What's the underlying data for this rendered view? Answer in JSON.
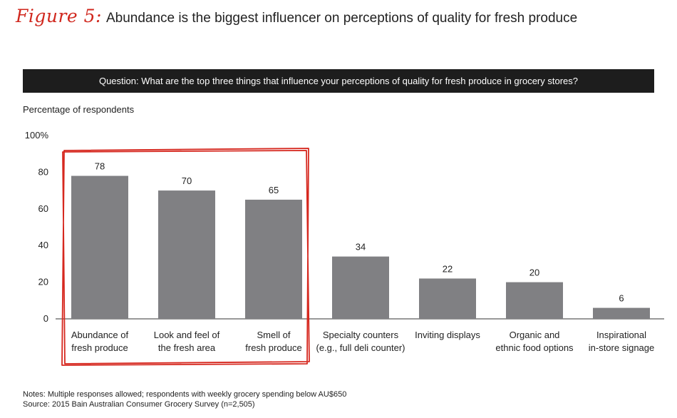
{
  "figure": {
    "label": "Figure 5:",
    "title": "Abundance is the biggest influencer on perceptions of quality for fresh produce"
  },
  "question": "Question: What are the top three things that influence your perceptions of quality for fresh produce in grocery stores?",
  "y_axis_caption": "Percentage of respondents",
  "notes": "Notes: Multiple responses allowed; respondents with weekly grocery spending below AU$650",
  "source": "Source: 2015 Bain Australian Consumer Grocery Survey (n=2,505)",
  "colors": {
    "bar": "#808083",
    "highlight": "#d6281f",
    "title_accent": "#d0271d",
    "question_bg": "#1d1d1d"
  },
  "chart_data": {
    "type": "bar",
    "categories": [
      [
        "Abundance of",
        "fresh produce"
      ],
      [
        "Look and feel of",
        "the fresh area"
      ],
      [
        "Smell of",
        "fresh produce"
      ],
      [
        "Specialty counters",
        "(e.g., full deli counter)"
      ],
      [
        "Inviting displays"
      ],
      [
        "Organic and",
        "ethnic food options"
      ],
      [
        "Inspirational",
        "in-store signage"
      ]
    ],
    "values": [
      78,
      70,
      65,
      34,
      22,
      20,
      6
    ],
    "ylim": [
      0,
      100
    ],
    "yticks": [
      "0",
      "20",
      "40",
      "60",
      "80",
      "100%"
    ],
    "ytick_values": [
      0,
      20,
      40,
      60,
      80,
      100
    ],
    "highlighted_categories": [
      0,
      1,
      2
    ],
    "grid": false
  }
}
